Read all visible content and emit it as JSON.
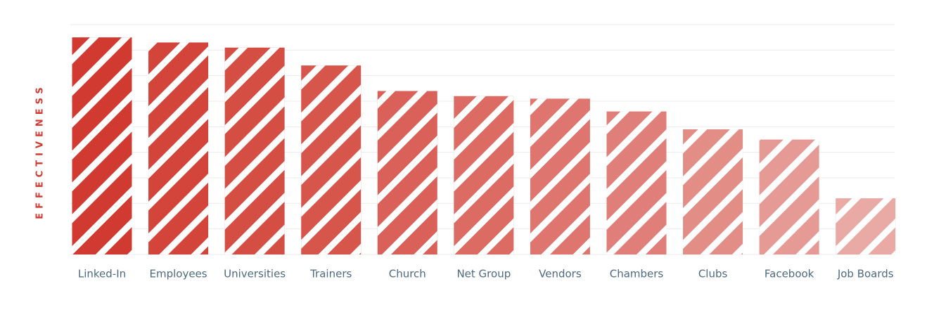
{
  "chart_data": {
    "type": "bar",
    "y_label": "EFFECTIVENESS",
    "categories": [
      "Linked-In",
      "Employees",
      "Universities",
      "Trainers",
      "Church",
      "Net Group",
      "Vendors",
      "Chambers",
      "Clubs",
      "Facebook",
      "Job Boards"
    ],
    "values": [
      8.5,
      8.3,
      8.1,
      7.4,
      6.4,
      6.2,
      6.1,
      5.6,
      4.9,
      4.5,
      2.2
    ],
    "colors": [
      "#d13a30",
      "#d3443a",
      "#d54e44",
      "#d7564c",
      "#da6159",
      "#dc6b63",
      "#de756e",
      "#e07f79",
      "#e38d87",
      "#e69a95",
      "#e9aaa6"
    ],
    "ylim": [
      0,
      9
    ],
    "yticks": [
      0,
      1,
      2,
      3,
      4,
      5,
      6,
      7,
      8,
      9
    ],
    "grid": true
  }
}
